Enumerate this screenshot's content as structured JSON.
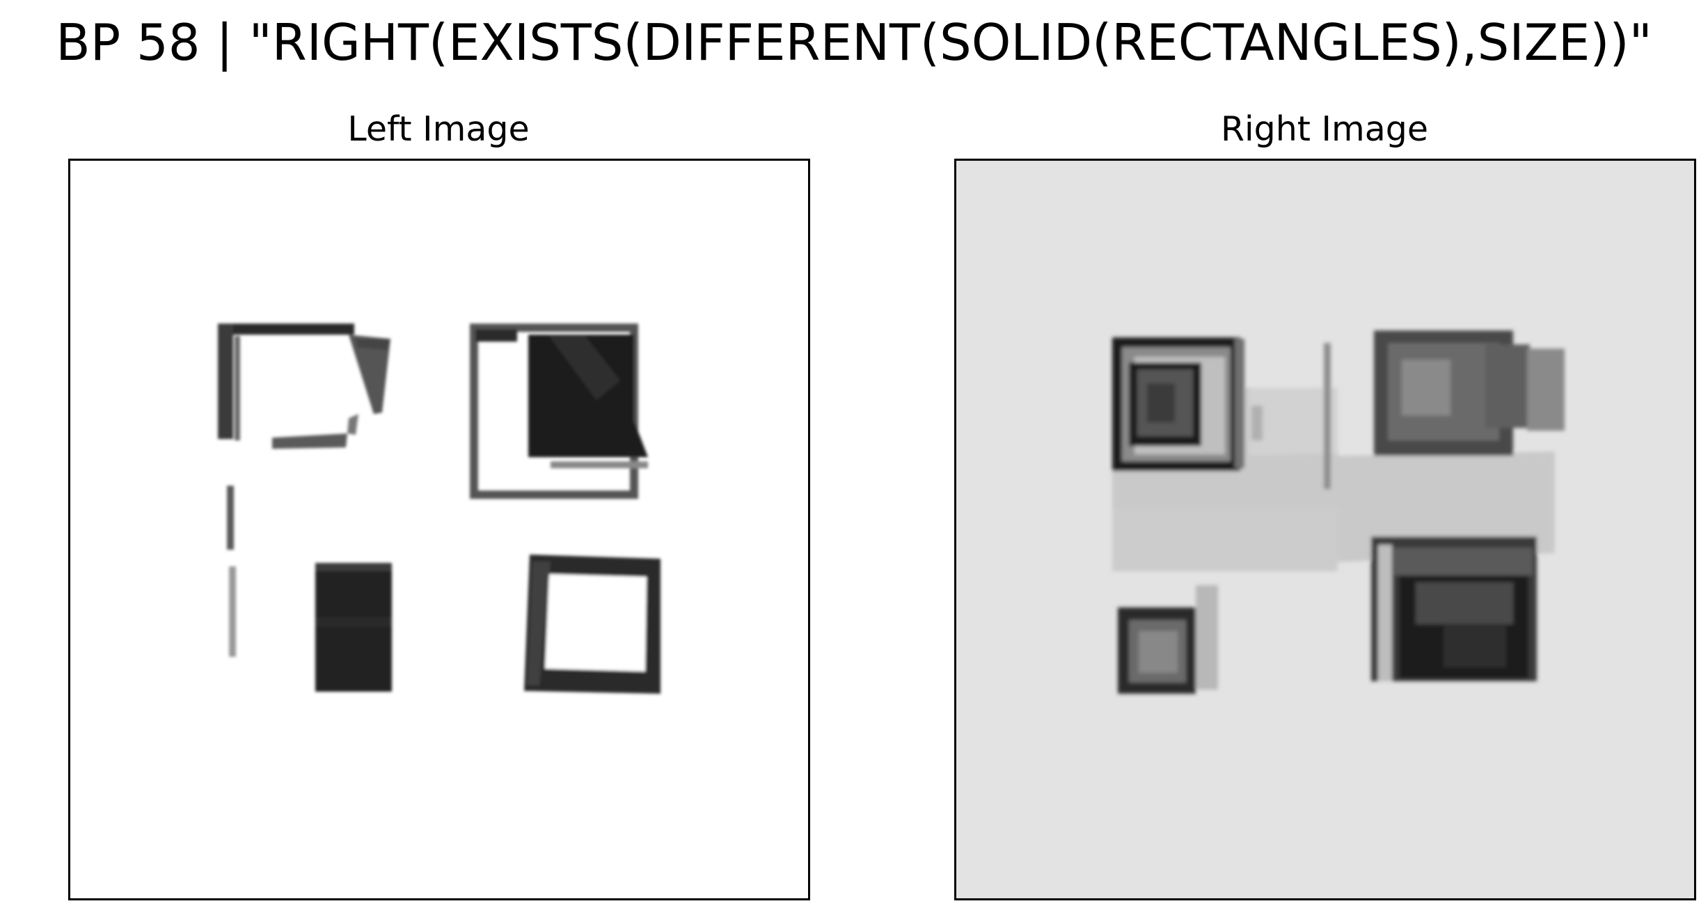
{
  "figure": {
    "title": "BP 58 | \"RIGHT(EXISTS(DIFFERENT(SOLID(RECTANGLES),SIZE))\""
  },
  "panels": {
    "left": {
      "title": "Left Image"
    },
    "right": {
      "title": "Right Image"
    }
  },
  "colors": {
    "right_background": "#e3e3e3",
    "shape_dark": "#1c1c1c",
    "frame": "#000000"
  }
}
